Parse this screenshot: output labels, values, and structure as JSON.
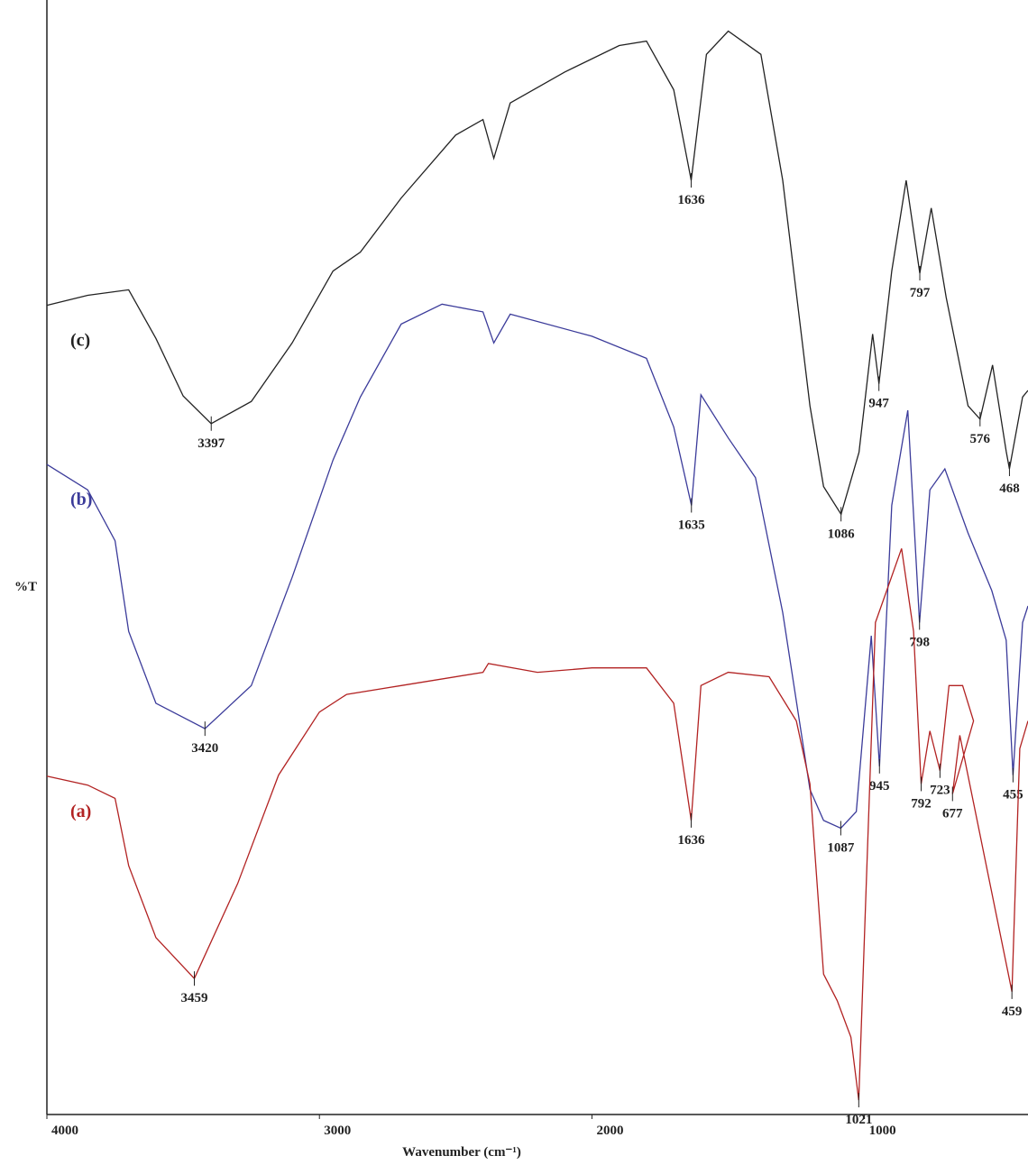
{
  "chart_data": {
    "type": "line",
    "xlabel": "Wavenumber (cm⁻¹)",
    "ylabel": "%T",
    "xlim": [
      4000,
      400
    ],
    "ylim": [
      0,
      100
    ],
    "xticks": [
      4000,
      3000,
      2000,
      1000
    ],
    "series": [
      {
        "name": "(c)",
        "color": "#222222",
        "x": [
          4000,
          3850,
          3700,
          3600,
          3500,
          3397,
          3250,
          3100,
          2950,
          2850,
          2700,
          2500,
          2400,
          2360,
          2300,
          2100,
          1900,
          1800,
          1700,
          1636,
          1580,
          1500,
          1380,
          1300,
          1200,
          1150,
          1086,
          1020,
          970,
          947,
          900,
          847,
          797,
          755,
          700,
          620,
          576,
          530,
          480,
          468,
          420,
          400
        ],
        "values": [
          73.2,
          74.1,
          74.6,
          70.2,
          65.0,
          62.5,
          64.5,
          69.8,
          76.3,
          78.0,
          82.9,
          88.6,
          90.0,
          86.5,
          91.5,
          94.3,
          96.7,
          97.1,
          92.7,
          84.5,
          95.9,
          98.0,
          95.9,
          84.5,
          64.1,
          56.8,
          54.3,
          59.9,
          70.6,
          66.1,
          76.3,
          84.5,
          76.1,
          82.0,
          73.9,
          64.1,
          62.9,
          67.8,
          60.0,
          58.4,
          64.9,
          65.5
        ],
        "peaks": [
          3397,
          1636,
          1086,
          947,
          797,
          576,
          468
        ]
      },
      {
        "name": "(b)",
        "color": "#3b3b9a",
        "x": [
          4000,
          3850,
          3750,
          3700,
          3600,
          3420,
          3250,
          3100,
          2950,
          2850,
          2700,
          2550,
          2400,
          2360,
          2300,
          2000,
          1800,
          1700,
          1635,
          1600,
          1500,
          1400,
          1300,
          1200,
          1150,
          1087,
          1030,
          975,
          945,
          900,
          841,
          798,
          760,
          705,
          620,
          533,
          480,
          455,
          420,
          400
        ],
        "values": [
          58.8,
          56.5,
          51.9,
          43.7,
          37.2,
          34.9,
          38.8,
          48.6,
          59.2,
          64.9,
          71.5,
          73.3,
          72.6,
          69.8,
          72.4,
          70.4,
          68.4,
          62.2,
          55.1,
          65.1,
          61.2,
          57.6,
          45.4,
          29.4,
          26.6,
          25.9,
          27.4,
          43.3,
          31.5,
          55.1,
          63.7,
          44.5,
          56.5,
          58.4,
          52.6,
          47.4,
          42.9,
          30.7,
          44.5,
          46.0
        ],
        "peaks": [
          3420,
          1635,
          1087,
          945,
          798,
          455
        ]
      },
      {
        "name": "(a)",
        "color": "#b22222",
        "x": [
          4000,
          3850,
          3750,
          3700,
          3600,
          3459,
          3300,
          3150,
          3000,
          2900,
          2700,
          2400,
          2380,
          2200,
          2000,
          1800,
          1700,
          1636,
          1600,
          1500,
          1350,
          1250,
          1200,
          1150,
          1100,
          1050,
          1021,
          990,
          960,
          864,
          820,
          792,
          760,
          723,
          690,
          640,
          600,
          677,
          650,
          459,
          430,
          400
        ],
        "values": [
          30.6,
          29.8,
          28.6,
          22.5,
          16.0,
          12.3,
          20.9,
          30.7,
          36.4,
          38.0,
          38.8,
          40.0,
          40.8,
          40.0,
          40.4,
          40.4,
          37.2,
          26.6,
          38.8,
          40.0,
          39.6,
          35.6,
          29.9,
          12.7,
          10.3,
          7.0,
          1.3,
          23.3,
          44.5,
          51.2,
          43.7,
          29.9,
          34.7,
          31.1,
          38.8,
          38.8,
          35.6,
          29.0,
          34.3,
          11.1,
          33.1,
          35.6
        ],
        "peaks": [
          3459,
          1636,
          1021,
          792,
          723,
          677,
          459
        ]
      }
    ]
  }
}
